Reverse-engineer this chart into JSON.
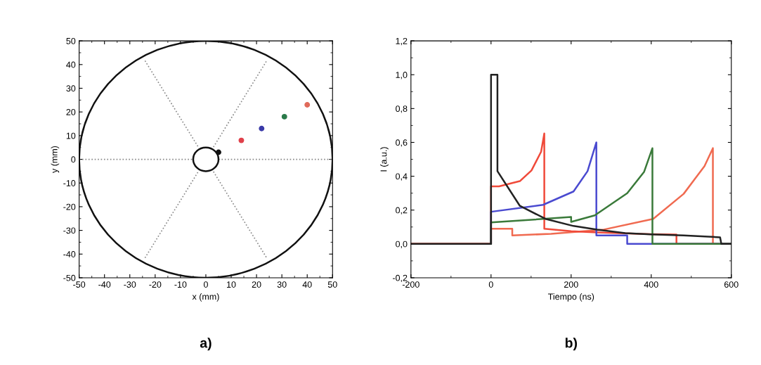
{
  "chart_data": [
    {
      "type": "line",
      "xlabel": "x (mm)",
      "ylabel": "y (mm)",
      "annotations": [
        "a)"
      ],
      "xlim": [
        -50,
        50
      ],
      "ylim": [
        -50,
        50
      ],
      "xticks": [
        -50,
        -40,
        -30,
        -20,
        -10,
        0,
        10,
        20,
        30,
        40,
        50
      ],
      "yticks": [
        -50,
        -40,
        -30,
        -20,
        -10,
        0,
        10,
        20,
        30,
        40,
        50
      ],
      "grid": false,
      "legend": false,
      "series": [
        {
          "line_style": "dotted",
          "color": "#888888",
          "x": [
            -50,
            -5,
            0,
            5,
            50
          ],
          "values": [
            0,
            0,
            null,
            0,
            0
          ]
        },
        {
          "line_style": "dotted",
          "color": "#888888",
          "x": [
            -24,
            -3,
            0,
            3,
            24
          ],
          "values": [
            41.6,
            5.2,
            null,
            -5.2,
            -41.6
          ]
        },
        {
          "line_style": "dotted",
          "color": "#888888",
          "x": [
            -24,
            -3,
            0,
            3,
            24
          ],
          "values": [
            -41.6,
            -5.2,
            null,
            5.2,
            41.6
          ]
        },
        {
          "type": "scatter",
          "marker": "circle",
          "color": "#111111",
          "x": [
            5
          ],
          "values": [
            3
          ]
        },
        {
          "type": "scatter",
          "marker": "circle",
          "color": "#e0404a",
          "x": [
            14
          ],
          "values": [
            8
          ]
        },
        {
          "type": "scatter",
          "marker": "circle",
          "color": "#3a3aa8",
          "x": [
            22
          ],
          "values": [
            13
          ]
        },
        {
          "type": "scatter",
          "marker": "circle",
          "color": "#2a7a4a",
          "x": [
            31
          ],
          "values": [
            18
          ]
        },
        {
          "type": "scatter",
          "marker": "circle",
          "color": "#e06a5a",
          "x": [
            40
          ],
          "values": [
            23
          ]
        }
      ]
    },
    {
      "type": "line",
      "xlabel": "Tiempo (ns)",
      "ylabel": "I (a.u.)",
      "annotations": [
        "b)"
      ],
      "xlim": [
        -200,
        600
      ],
      "ylim": [
        -0.2,
        1.2
      ],
      "xticks": [
        -200,
        0,
        200,
        400,
        600
      ],
      "yticks": [
        {
          "value": -0.2,
          "label": "-0,2"
        },
        {
          "value": 0,
          "label": "0,0"
        },
        {
          "value": 0.2,
          "label": "0,2"
        },
        {
          "value": 0.4,
          "label": "0,4"
        },
        {
          "value": 0.6,
          "label": "0,6"
        },
        {
          "value": 0.8,
          "label": "0,8"
        },
        {
          "value": 1.0,
          "label": "1,0"
        },
        {
          "value": 1.2,
          "label": "1,2"
        }
      ],
      "grid": false,
      "legend": false,
      "series": [
        {
          "line_style": "solid",
          "color": "#f06a50",
          "x": [
            -200,
            0,
            0,
            53,
            53,
            150,
            282,
            405,
            481,
            533,
            554,
            554,
            600
          ],
          "values": [
            0,
            0,
            0.09,
            0.09,
            0.05,
            0.06,
            0.085,
            0.148,
            0.296,
            0.46,
            0.566,
            0,
            0
          ]
        },
        {
          "line_style": "solid",
          "color": "#f04a3a",
          "x": [
            -200,
            0,
            0,
            20,
            72,
            101,
            125,
            133,
            133,
            200,
            265,
            400,
            463,
            463,
            600
          ],
          "values": [
            0,
            0,
            0.34,
            0.34,
            0.371,
            0.434,
            0.545,
            0.653,
            0.09,
            0.075,
            0.068,
            0.058,
            0.055,
            0,
            0
          ]
        },
        {
          "line_style": "solid",
          "color": "#4a4ad0",
          "x": [
            0,
            0,
            130,
            206,
            241,
            263,
            263,
            340,
            340,
            600
          ],
          "values": [
            0,
            0.19,
            0.231,
            0.31,
            0.43,
            0.6,
            0.05,
            0.05,
            0,
            0
          ]
        },
        {
          "line_style": "solid",
          "color": "#3a7a3a",
          "x": [
            0,
            0,
            200,
            200,
            259,
            340,
            382,
            403,
            403,
            600
          ],
          "values": [
            0,
            0.127,
            0.159,
            0.13,
            0.169,
            0.3,
            0.425,
            0.566,
            0,
            0
          ]
        },
        {
          "line_style": "solid",
          "color": "#222222",
          "x": [
            -200,
            0,
            0,
            16,
            16,
            72,
            136,
            206,
            265,
            335,
            399,
            481,
            572,
            575,
            600
          ],
          "values": [
            0,
            0,
            1.0,
            1.0,
            0.43,
            0.225,
            0.148,
            0.106,
            0.085,
            0.064,
            0.057,
            0.05,
            0.039,
            0,
            0
          ]
        }
      ]
    }
  ]
}
